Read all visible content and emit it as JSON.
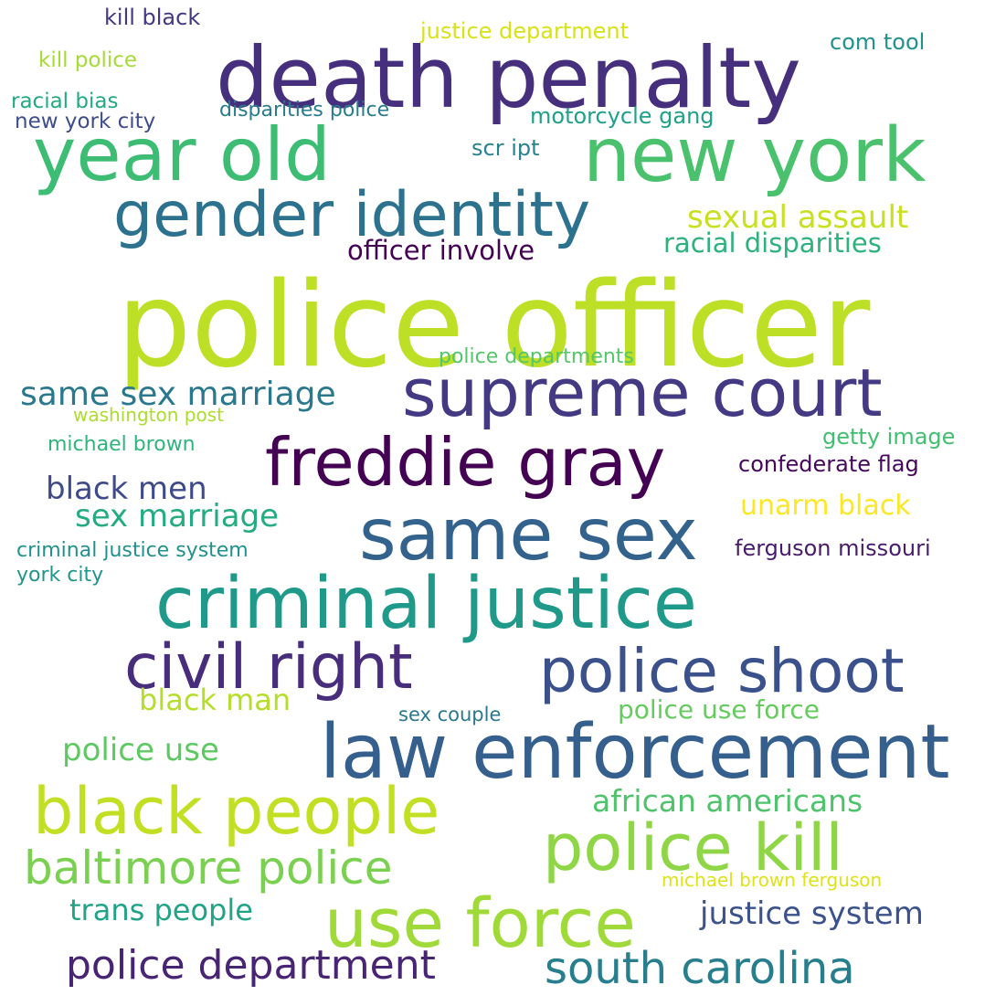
{
  "words": [
    {
      "text": "police officer",
      "color": "#bddf26"
    },
    {
      "text": "death penalty",
      "color": "#46307e"
    },
    {
      "text": "new york",
      "color": "#4ac16d"
    },
    {
      "text": "year old",
      "color": "#3dbc74"
    },
    {
      "text": "gender identity",
      "color": "#2c728e"
    },
    {
      "text": "supreme court",
      "color": "#443983"
    },
    {
      "text": "freddie gray",
      "color": "#440154"
    },
    {
      "text": "same sex",
      "color": "#33638d"
    },
    {
      "text": "criminal justice",
      "color": "#1f9a8a"
    },
    {
      "text": "civil right",
      "color": "#472d7b"
    },
    {
      "text": "police shoot",
      "color": "#3b518b"
    },
    {
      "text": "law enforcement",
      "color": "#355f8d"
    },
    {
      "text": "black people",
      "color": "#c2df23"
    },
    {
      "text": "police kill",
      "color": "#8ed645"
    },
    {
      "text": "use force",
      "color": "#a0da39"
    },
    {
      "text": "baltimore police",
      "color": "#7ad151"
    },
    {
      "text": "police department",
      "color": "#482475"
    },
    {
      "text": "south carolina",
      "color": "#277f8e"
    },
    {
      "text": "sexual assault",
      "color": "#c8e020"
    },
    {
      "text": "racial disparities",
      "color": "#2db27d"
    },
    {
      "text": "officer involve",
      "color": "#440154"
    },
    {
      "text": "same sex marriage",
      "color": "#2a788e"
    },
    {
      "text": "black men",
      "color": "#3e4a89"
    },
    {
      "text": "sex marriage",
      "color": "#25ab82"
    },
    {
      "text": "unarm black",
      "color": "#fde725"
    },
    {
      "text": "confederate flag",
      "color": "#46085c"
    },
    {
      "text": "getty image",
      "color": "#42be71"
    },
    {
      "text": "ferguson missouri",
      "color": "#481b6d"
    },
    {
      "text": "criminal justice system",
      "color": "#21918c"
    },
    {
      "text": "york city",
      "color": "#1f968b"
    },
    {
      "text": "washington post",
      "color": "#addc30"
    },
    {
      "text": "michael brown",
      "color": "#2fb47c"
    },
    {
      "text": "police departments",
      "color": "#54c568"
    },
    {
      "text": "black man",
      "color": "#b5de2b"
    },
    {
      "text": "sex couple",
      "color": "#2a788e"
    },
    {
      "text": "police use force",
      "color": "#65cb5e"
    },
    {
      "text": "police use",
      "color": "#5ec962"
    },
    {
      "text": "african americans",
      "color": "#4ec36b"
    },
    {
      "text": "michael brown ferguson",
      "color": "#dde318"
    },
    {
      "text": "trans people",
      "color": "#20a386"
    },
    {
      "text": "justice system",
      "color": "#3b528b"
    },
    {
      "text": "kill black",
      "color": "#453781"
    },
    {
      "text": "kill police",
      "color": "#a5db36"
    },
    {
      "text": "racial bias",
      "color": "#23a983"
    },
    {
      "text": "new york city",
      "color": "#3e4c8a"
    },
    {
      "text": "disparities police",
      "color": "#287c8e"
    },
    {
      "text": "justice department",
      "color": "#d8e219"
    },
    {
      "text": "motorcycle gang",
      "color": "#1fa088"
    },
    {
      "text": "com tool",
      "color": "#21918c"
    },
    {
      "text": "scr ipt",
      "color": "#26828e"
    }
  ]
}
